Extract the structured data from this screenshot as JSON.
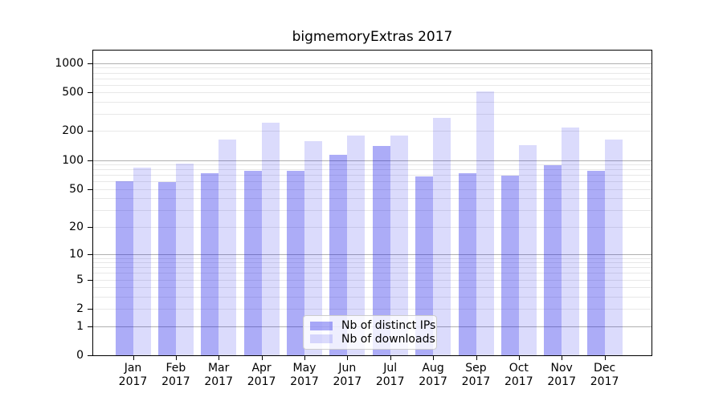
{
  "chart_data": {
    "type": "bar",
    "title": "bigmemoryExtras 2017",
    "categories": [
      "Jan",
      "Feb",
      "Mar",
      "Apr",
      "May",
      "Jun",
      "Jul",
      "Aug",
      "Sep",
      "Oct",
      "Nov",
      "Dec"
    ],
    "category_year": "2017",
    "series": [
      {
        "name": "Nb of distinct IPs",
        "color": "rgba(16,16,232,0.35)",
        "values": [
          60,
          59,
          73,
          78,
          77,
          114,
          141,
          68,
          73,
          69,
          89,
          77
        ]
      },
      {
        "name": "Nb of downloads",
        "color": "rgba(16,16,232,0.15)",
        "values": [
          83,
          92,
          163,
          244,
          158,
          181,
          181,
          275,
          512,
          144,
          219,
          163
        ]
      }
    ],
    "xlabel": "",
    "ylabel": "",
    "yscale": "log1p",
    "yticks": [
      0,
      1,
      2,
      5,
      10,
      20,
      50,
      100,
      200,
      500,
      1000
    ],
    "ylim": [
      0,
      1380
    ],
    "grid": "horizontal major+minor",
    "legend_position": "lower center inside plot",
    "colors": {
      "major_grid": "#b0b0b0",
      "minor_grid": "#e8e8e8",
      "spine": "#000000",
      "text": "#000000"
    }
  }
}
